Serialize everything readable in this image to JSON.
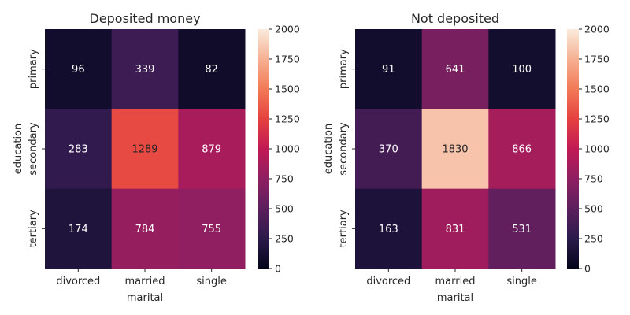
{
  "colorbar": {
    "min": 0,
    "max": 2000,
    "ticks": [
      "0",
      "250",
      "500",
      "750",
      "1000",
      "1250",
      "1500",
      "1750",
      "2000"
    ],
    "colormap": "rocket",
    "colormap_stops": [
      "#03051a",
      "#2b1a4b",
      "#5c1f5e",
      "#8e1f61",
      "#c11a55",
      "#e5413f",
      "#f27a56",
      "#f6b092",
      "#faebdd"
    ]
  },
  "chart_data": [
    {
      "type": "heatmap",
      "title": "Deposited money",
      "xlabel": "marital",
      "ylabel": "education",
      "x_categories": [
        "divorced",
        "married",
        "single"
      ],
      "y_categories": [
        "primary",
        "secondary",
        "tertiary"
      ],
      "values": [
        [
          96,
          339,
          82
        ],
        [
          283,
          1289,
          879
        ],
        [
          174,
          784,
          755
        ]
      ],
      "cell_labels": [
        [
          "96",
          "339",
          "82"
        ],
        [
          "283",
          "1289",
          "879"
        ],
        [
          "174",
          "784",
          "755"
        ]
      ],
      "zlim": [
        0,
        2000
      ]
    },
    {
      "type": "heatmap",
      "title": "Not deposited",
      "xlabel": "marital",
      "ylabel": "education",
      "x_categories": [
        "divorced",
        "married",
        "single"
      ],
      "y_categories": [
        "primary",
        "secondary",
        "tertiary"
      ],
      "values": [
        [
          91,
          641,
          100
        ],
        [
          370,
          1830,
          866
        ],
        [
          163,
          831,
          531
        ]
      ],
      "cell_labels": [
        [
          "91",
          "641",
          "100"
        ],
        [
          "370",
          "1830",
          "866"
        ],
        [
          "163",
          "831",
          "531"
        ]
      ],
      "zlim": [
        0,
        2000
      ]
    }
  ]
}
